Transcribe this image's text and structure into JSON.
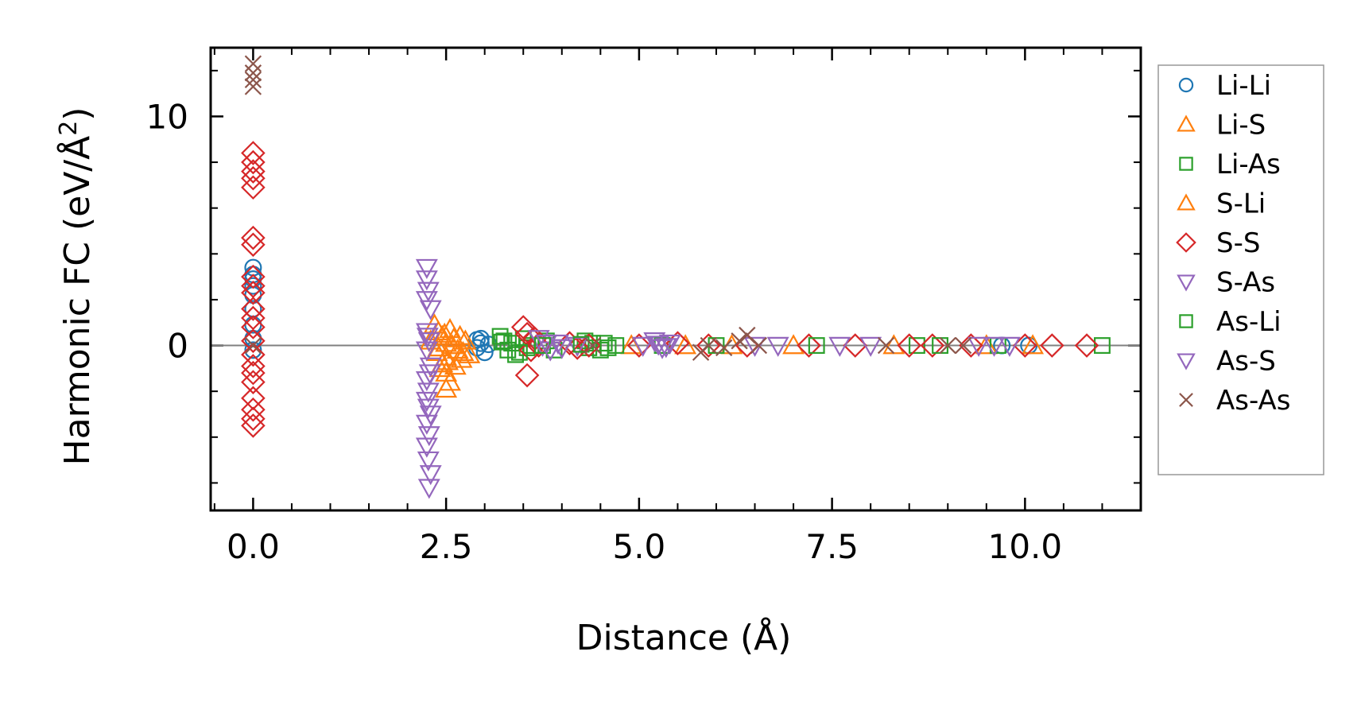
{
  "chart_data": {
    "type": "scatter",
    "title": "",
    "xlabel": "Distance (Å)",
    "ylabel_main": "Harmonic FC (eV/Å",
    "ylabel_sup": "2",
    "ylabel_close": ")",
    "xlim": [
      -0.55,
      11.5
    ],
    "ylim": [
      -7.2,
      13.0
    ],
    "x_ticks": [
      0.0,
      2.5,
      5.0,
      7.5,
      10.0
    ],
    "x_tick_labels": [
      "0.0",
      "2.5",
      "5.0",
      "7.5",
      "10.0"
    ],
    "y_ticks": [
      0,
      10
    ],
    "y_tick_labels": [
      "0",
      "10"
    ],
    "x_minor_step": 0.5,
    "y_minor_step": 2,
    "zero_line": true,
    "grid": false,
    "legend_position": "outside-right",
    "series": [
      {
        "name": "Li-Li",
        "marker": "circle",
        "color": "#1f77b4",
        "points": [
          [
            0,
            3.4
          ],
          [
            0,
            3.1
          ],
          [
            0,
            2.9
          ],
          [
            0,
            2.6
          ],
          [
            0,
            2.2
          ],
          [
            0,
            1.6
          ],
          [
            0,
            0.9
          ],
          [
            0,
            0.3
          ],
          [
            0,
            -0.2
          ],
          [
            2.9,
            0.25
          ],
          [
            2.95,
            0.1
          ],
          [
            2.9,
            -0.1
          ],
          [
            3.0,
            -0.3
          ],
          [
            2.95,
            0.3
          ],
          [
            3.05,
            0.05
          ],
          [
            10.05,
            0.0
          ],
          [
            9.7,
            0.0
          ]
        ]
      },
      {
        "name": "Li-S",
        "marker": "triangle-up",
        "color": "#ff7f0e",
        "points": [
          [
            2.35,
            0.9
          ],
          [
            2.4,
            0.6
          ],
          [
            2.45,
            0.4
          ],
          [
            2.5,
            0.1
          ],
          [
            2.4,
            -0.1
          ],
          [
            2.5,
            -0.5
          ],
          [
            2.45,
            -0.8
          ],
          [
            2.5,
            -1.2
          ],
          [
            2.55,
            -1.6
          ],
          [
            2.5,
            -1.9
          ],
          [
            2.6,
            0.3
          ],
          [
            2.65,
            -0.2
          ],
          [
            2.7,
            -0.6
          ],
          [
            2.55,
            0.7
          ],
          [
            2.75,
            0.2
          ],
          [
            2.8,
            -0.4
          ],
          [
            4.9,
            0.0
          ],
          [
            6.2,
            0.0
          ],
          [
            7.0,
            0.0
          ],
          [
            9.5,
            0.0
          ],
          [
            10.1,
            0.0
          ]
        ]
      },
      {
        "name": "Li-As",
        "marker": "square",
        "color": "#2ca02c",
        "points": [
          [
            3.2,
            0.4
          ],
          [
            3.25,
            0.2
          ],
          [
            3.3,
            -0.2
          ],
          [
            3.35,
            0.1
          ],
          [
            3.4,
            -0.4
          ],
          [
            3.5,
            0.3
          ],
          [
            3.55,
            -0.1
          ],
          [
            3.6,
            0.0
          ],
          [
            3.8,
            0.2
          ],
          [
            3.9,
            -0.2
          ],
          [
            4.3,
            0.2
          ],
          [
            4.35,
            -0.1
          ],
          [
            4.4,
            0.1
          ],
          [
            4.5,
            -0.2
          ],
          [
            4.55,
            0.1
          ],
          [
            4.7,
            0.0
          ],
          [
            5.3,
            0.0
          ],
          [
            8.6,
            0.0
          ],
          [
            9.65,
            0.0
          ],
          [
            11.0,
            0.0
          ]
        ]
      },
      {
        "name": "S-Li",
        "marker": "triangle-up",
        "color": "#ff7f0e",
        "points": [
          [
            2.3,
            0.2
          ],
          [
            2.38,
            -0.3
          ],
          [
            2.42,
            -1.0
          ],
          [
            2.48,
            0.5
          ],
          [
            2.52,
            -0.7
          ],
          [
            2.58,
            0.0
          ],
          [
            2.62,
            -0.9
          ],
          [
            2.68,
            0.4
          ],
          [
            2.72,
            -0.3
          ],
          [
            5.6,
            0.0
          ],
          [
            8.3,
            0.0
          ]
        ]
      },
      {
        "name": "S-S",
        "marker": "diamond",
        "color": "#d62728",
        "points": [
          [
            0,
            8.4
          ],
          [
            0,
            8.0
          ],
          [
            0,
            7.6
          ],
          [
            0,
            7.3
          ],
          [
            0,
            6.9
          ],
          [
            0,
            4.7
          ],
          [
            0,
            4.4
          ],
          [
            0,
            3.0
          ],
          [
            0,
            2.6
          ],
          [
            0,
            2.3
          ],
          [
            0,
            1.6
          ],
          [
            0,
            1.2
          ],
          [
            0,
            0.8
          ],
          [
            0,
            0.2
          ],
          [
            0,
            -0.4
          ],
          [
            0,
            -0.9
          ],
          [
            0,
            -1.2
          ],
          [
            0,
            -1.6
          ],
          [
            0,
            -2.3
          ],
          [
            0,
            -2.8
          ],
          [
            0,
            -3.2
          ],
          [
            0,
            -3.5
          ],
          [
            3.5,
            0.8
          ],
          [
            3.55,
            0.5
          ],
          [
            3.6,
            -0.2
          ],
          [
            3.65,
            0.3
          ],
          [
            3.55,
            -1.3
          ],
          [
            3.7,
            0.0
          ],
          [
            4.1,
            0.1
          ],
          [
            4.2,
            -0.1
          ],
          [
            4.35,
            0.0
          ],
          [
            5.0,
            0.0
          ],
          [
            5.5,
            0.1
          ],
          [
            5.9,
            0.0
          ],
          [
            6.4,
            0.0
          ],
          [
            7.2,
            0.0
          ],
          [
            7.8,
            0.0
          ],
          [
            8.5,
            0.0
          ],
          [
            8.8,
            0.0
          ],
          [
            9.3,
            0.0
          ],
          [
            10.0,
            0.0
          ],
          [
            10.35,
            0.0
          ],
          [
            10.8,
            0.0
          ]
        ]
      },
      {
        "name": "S-As",
        "marker": "triangle-down",
        "color": "#9467bd",
        "points": [
          [
            2.25,
            3.4
          ],
          [
            2.25,
            2.9
          ],
          [
            2.27,
            2.4
          ],
          [
            2.25,
            2.0
          ],
          [
            2.3,
            1.6
          ],
          [
            2.25,
            0.6
          ],
          [
            2.28,
            0.2
          ],
          [
            2.25,
            -0.2
          ],
          [
            2.3,
            -0.9
          ],
          [
            2.25,
            -1.5
          ],
          [
            2.27,
            -2.0
          ],
          [
            2.25,
            -2.4
          ],
          [
            2.3,
            -3.0
          ],
          [
            2.25,
            -3.4
          ],
          [
            2.28,
            -3.9
          ],
          [
            2.25,
            -4.4
          ],
          [
            2.27,
            -5.0
          ],
          [
            2.3,
            -5.6
          ],
          [
            2.28,
            -6.2
          ],
          [
            3.7,
            0.3
          ],
          [
            3.75,
            0.0
          ],
          [
            3.85,
            -0.2
          ],
          [
            3.95,
            0.1
          ],
          [
            4.2,
            0.0
          ],
          [
            5.05,
            0.0
          ],
          [
            5.2,
            0.2
          ],
          [
            5.3,
            -0.1
          ],
          [
            5.4,
            0.1
          ],
          [
            6.8,
            0.0
          ],
          [
            7.6,
            0.0
          ],
          [
            9.4,
            0.0
          ],
          [
            9.8,
            0.0
          ]
        ]
      },
      {
        "name": "As-Li",
        "marker": "square",
        "color": "#2ca02c",
        "points": [
          [
            3.22,
            0.15
          ],
          [
            3.45,
            -0.3
          ],
          [
            3.75,
            0.0
          ],
          [
            4.25,
            0.05
          ],
          [
            4.6,
            -0.1
          ],
          [
            6.0,
            0.0
          ],
          [
            7.3,
            0.0
          ],
          [
            8.9,
            0.0
          ]
        ]
      },
      {
        "name": "As-S",
        "marker": "triangle-down",
        "color": "#9467bd",
        "points": [
          [
            2.26,
            0.4
          ],
          [
            2.29,
            -1.2
          ],
          [
            2.27,
            -2.7
          ],
          [
            3.8,
            0.1
          ],
          [
            4.0,
            -0.1
          ],
          [
            5.25,
            0.05
          ],
          [
            5.35,
            -0.05
          ],
          [
            6.5,
            0.0
          ],
          [
            8.0,
            0.0
          ],
          [
            9.6,
            0.0
          ]
        ]
      },
      {
        "name": "As-As",
        "marker": "x",
        "color": "#8c564b",
        "points": [
          [
            0,
            12.3
          ],
          [
            0,
            11.9
          ],
          [
            0,
            11.6
          ],
          [
            0,
            11.3
          ],
          [
            0,
            0.0
          ],
          [
            4.4,
            0.0
          ],
          [
            5.8,
            -0.3
          ],
          [
            5.9,
            0.0
          ],
          [
            6.1,
            -0.1
          ],
          [
            6.3,
            0.2
          ],
          [
            6.4,
            0.45
          ],
          [
            6.55,
            0.0
          ],
          [
            8.2,
            0.0
          ],
          [
            9.0,
            0.0
          ],
          [
            9.2,
            0.0
          ]
        ]
      }
    ]
  }
}
